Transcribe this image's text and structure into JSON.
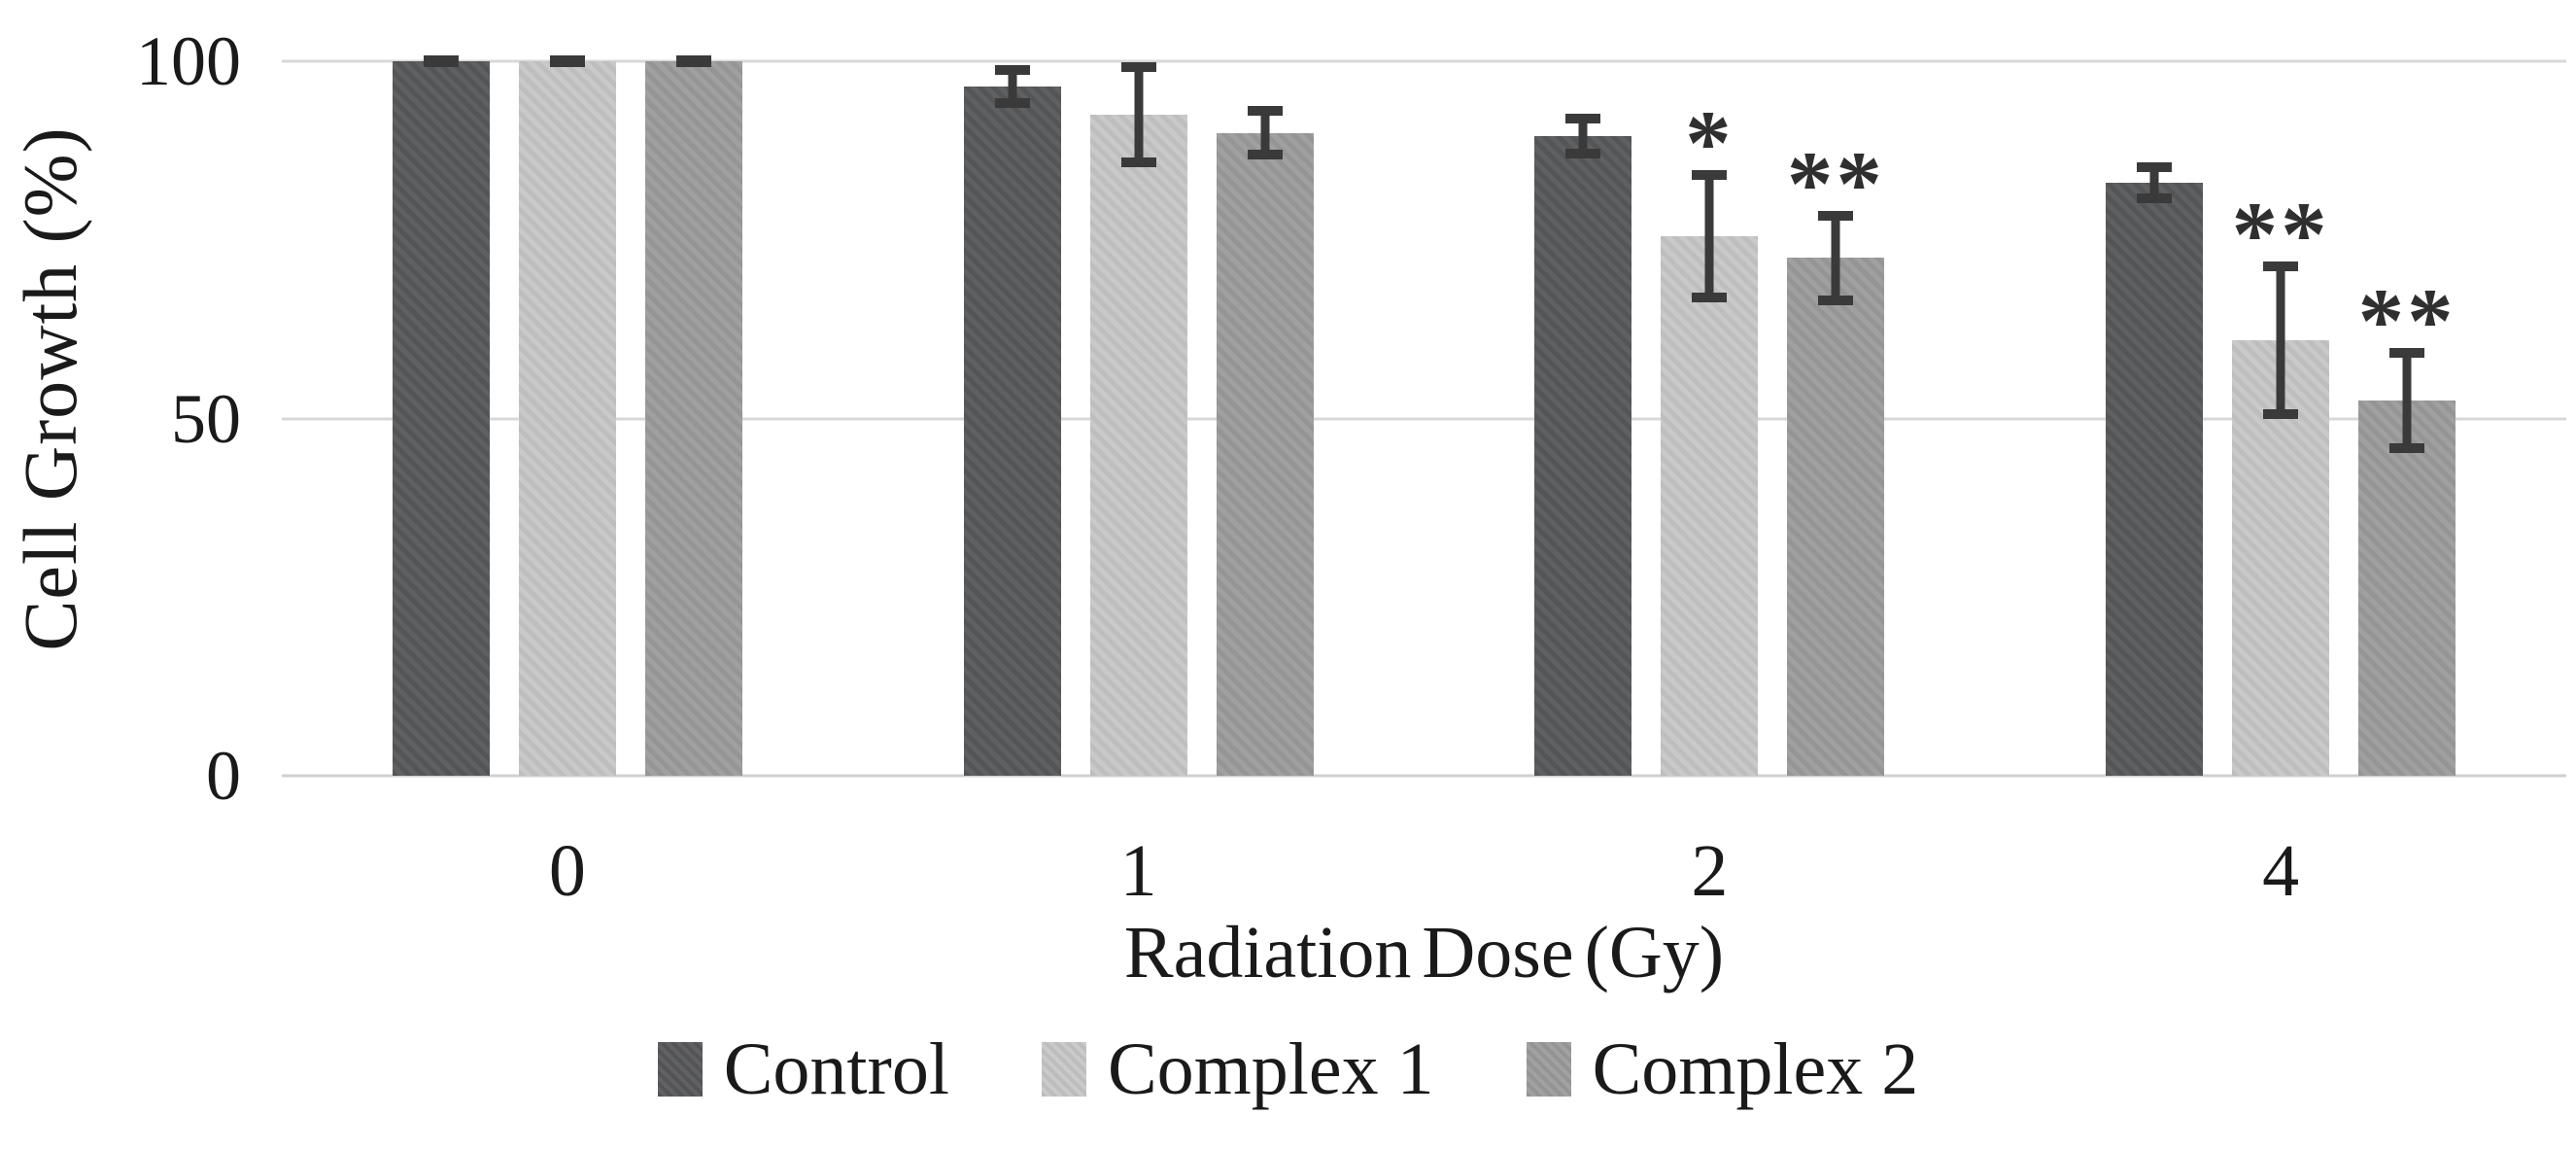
{
  "figure": {
    "background": "#ffffff",
    "text_color": "#1a1a1a"
  },
  "chart_data": {
    "type": "bar",
    "title": "",
    "xlabel": "Radiation Dose (Gy)",
    "ylabel": "Cell Growth (%)",
    "ylim": [
      0,
      100
    ],
    "yticks": [
      100,
      50,
      0
    ],
    "grid": true,
    "gridline_color": "#d8d8d8",
    "baseline_color": "#d0d0d0",
    "error_bar_color": "#3a3a3a",
    "significance_color": "#2f2f2f",
    "legend_position": "bottom",
    "categories": [
      "0",
      "1",
      "2",
      "4"
    ],
    "series": [
      {
        "name": "Control",
        "color": "#58595b",
        "values": [
          100,
          96.5,
          89.5,
          83
        ],
        "errors": [
          0.8,
          3.0,
          3.1,
          2.9
        ],
        "significance": [
          "",
          "",
          "",
          ""
        ]
      },
      {
        "name": "Complex 1",
        "color": "#c7c7c7",
        "values": [
          100,
          92.5,
          75.5,
          61
        ],
        "errors": [
          0.8,
          7.3,
          9.3,
          11.0
        ],
        "significance": [
          "",
          "",
          "*",
          "**"
        ]
      },
      {
        "name": "Complex 2",
        "color": "#9c9c9c",
        "values": [
          100,
          90.0,
          72.5,
          52.5
        ],
        "errors": [
          0.8,
          3.7,
          6.6,
          7.3
        ],
        "significance": [
          "",
          "",
          "**",
          "**"
        ]
      }
    ]
  }
}
